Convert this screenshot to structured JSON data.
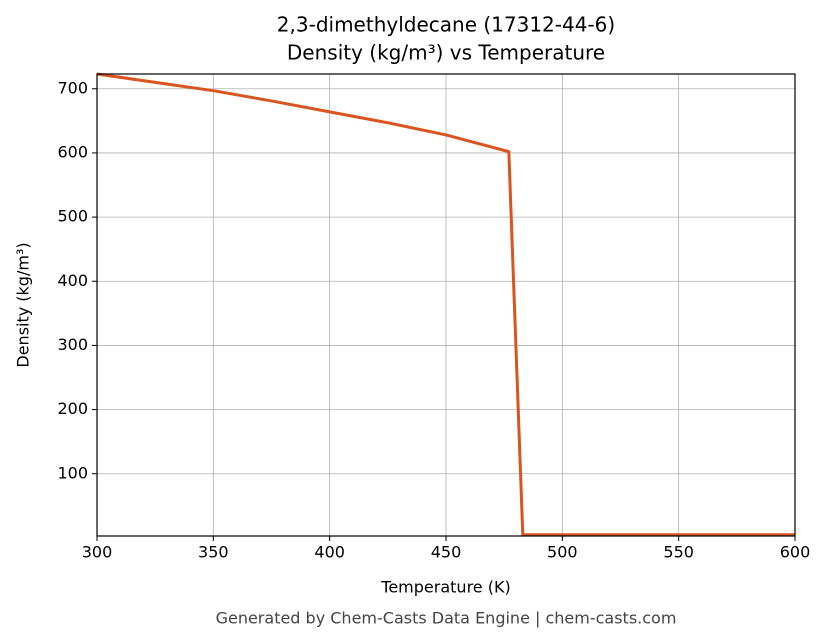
{
  "chart_data": {
    "type": "line",
    "title": "2,3-dimethyldecane (17312-44-6)",
    "subtitle": "Density (kg/m³) vs Temperature",
    "x_label": "Temperature (K)",
    "y_label": "Density (kg/m³)",
    "footer": "Generated by Chem-Casts Data Engine | chem-casts.com",
    "x": [
      300,
      325,
      350,
      375,
      400,
      425,
      450,
      477,
      483,
      600
    ],
    "values": [
      723,
      710,
      697,
      681,
      664,
      647,
      628,
      602,
      5,
      5
    ],
    "color": "#d9541e",
    "xlim": [
      300,
      600
    ],
    "xticks": [
      300,
      350,
      400,
      450,
      500,
      550,
      600
    ],
    "ylim": [
      3,
      723
    ],
    "yticks": [
      100,
      200,
      300,
      400,
      500,
      600,
      700
    ],
    "grid": true
  }
}
